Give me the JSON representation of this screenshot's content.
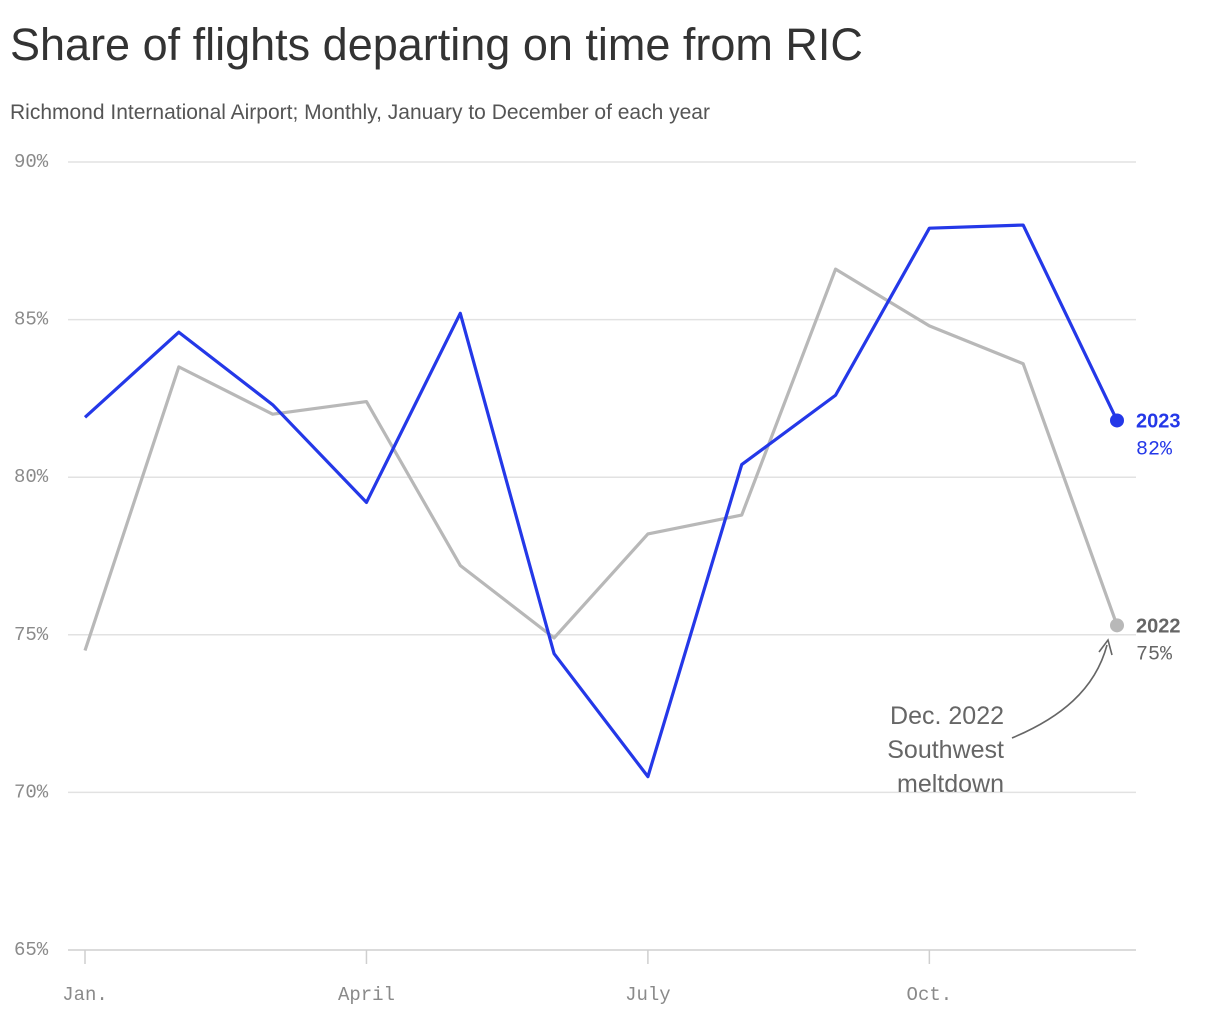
{
  "chart_data": {
    "type": "line",
    "title": "Share of flights departing on time from RIC",
    "subtitle": "Richmond International Airport; Monthly, January to December of each year",
    "categories": [
      "Jan.",
      null,
      null,
      "April",
      null,
      null,
      "July",
      null,
      null,
      "Oct.",
      null,
      null
    ],
    "series": [
      {
        "name": "2022",
        "color": "#b8b8b8",
        "values": [
          74.5,
          83.5,
          82.0,
          82.4,
          77.2,
          74.9,
          78.2,
          78.8,
          86.6,
          84.8,
          83.6,
          75.3
        ],
        "value_labels": [
          null,
          null,
          null,
          null,
          null,
          null,
          null,
          null,
          null,
          null,
          null,
          "75%"
        ]
      },
      {
        "name": "2023",
        "color": "#2438e8",
        "values": [
          81.9,
          84.6,
          82.3,
          79.2,
          85.2,
          74.4,
          70.5,
          80.4,
          82.6,
          87.9,
          88.0,
          81.8
        ],
        "value_labels": [
          null,
          null,
          null,
          null,
          null,
          null,
          null,
          null,
          null,
          null,
          null,
          "82%"
        ]
      }
    ],
    "ylim": [
      65,
      90
    ],
    "yticks": [
      {
        "value": 65,
        "label": "65%"
      },
      {
        "value": 70,
        "label": "70%"
      },
      {
        "value": 75,
        "label": "75%"
      },
      {
        "value": 80,
        "label": "80%"
      },
      {
        "value": 85,
        "label": "85%"
      },
      {
        "value": 90,
        "label": "90%"
      }
    ],
    "grid": true,
    "annotation": {
      "lines": [
        "Dec. 2022",
        "Southwest",
        "meltdown"
      ]
    }
  }
}
